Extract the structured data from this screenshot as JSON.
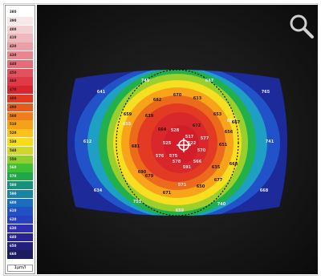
{
  "legend": {
    "scale": [
      "380",
      "390",
      "400",
      "410",
      "420",
      "430",
      "440",
      "450",
      "460",
      "470",
      "480",
      "490",
      "500",
      "510",
      "520",
      "530",
      "540",
      "550",
      "560",
      "570",
      "580",
      "590",
      "600",
      "610",
      "620",
      "630",
      "640",
      "650",
      "660"
    ],
    "colors": [
      "#ffffff",
      "#f7e8ea",
      "#f2d0d4",
      "#eeb9be",
      "#ea9fa6",
      "#e88690",
      "#e56b76",
      "#e2525e",
      "#df3a46",
      "#d8262e",
      "#e03a22",
      "#e65a1e",
      "#ee7f1c",
      "#f5a21a",
      "#fbc21b",
      "#f7dc1e",
      "#cfd82a",
      "#8fce2e",
      "#3fbf32",
      "#1ea84a",
      "#16907a",
      "#1784a4",
      "#1b6dbd",
      "#2052c4",
      "#2640c0",
      "#2d2fb0",
      "#2a2395",
      "#23207a",
      "#1c1d60"
    ],
    "unit": "1µm/I"
  },
  "map": {
    "labels_outer": [
      "641",
      "749",
      "647",
      "765",
      "612",
      "741",
      "634",
      "753",
      "659",
      "740",
      "668",
      "655",
      "652"
    ],
    "labels_mid": [
      "682",
      "670",
      "613",
      "659",
      "639",
      "653",
      "667",
      "681",
      "690",
      "679",
      "671",
      "650",
      "635",
      "668",
      "651",
      "656",
      "664",
      "672",
      "677"
    ],
    "labels_center": [
      "528",
      "517",
      "525",
      "522",
      "570",
      "578",
      "591",
      "566",
      "576",
      "577",
      "571",
      "575"
    ]
  },
  "zoom_icon": "magnifier-icon"
}
